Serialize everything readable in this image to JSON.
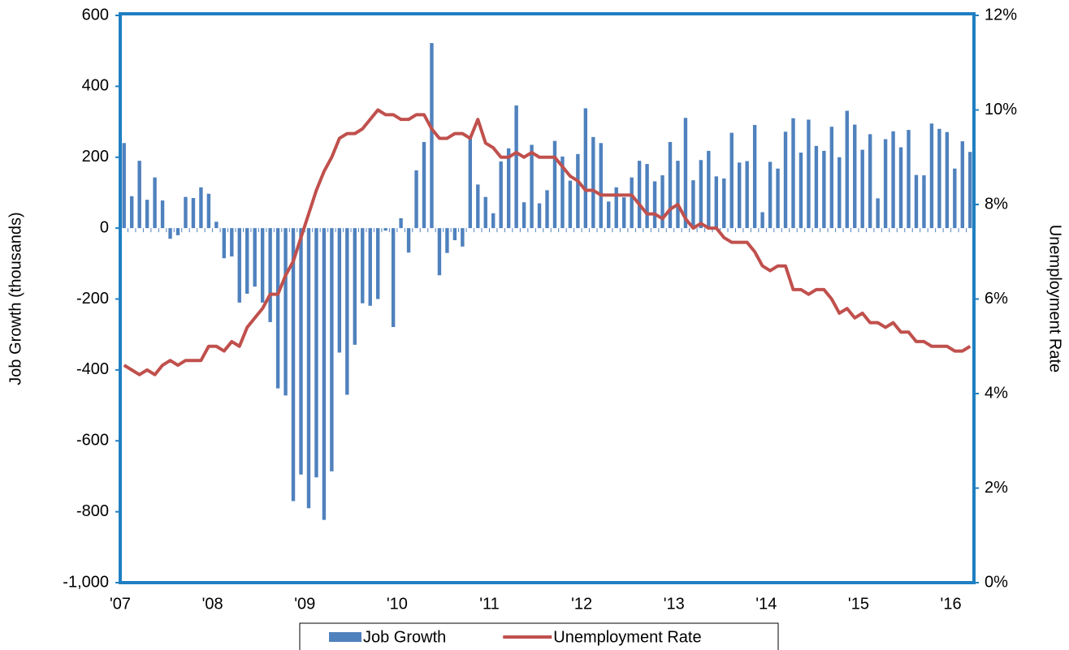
{
  "chart_data": {
    "type": "bar",
    "categories": [
      "'07",
      null,
      null,
      null,
      null,
      null,
      null,
      null,
      null,
      null,
      null,
      null,
      "'08",
      null,
      null,
      null,
      null,
      null,
      null,
      null,
      null,
      null,
      null,
      null,
      "'09",
      null,
      null,
      null,
      null,
      null,
      null,
      null,
      null,
      null,
      null,
      null,
      "'10",
      null,
      null,
      null,
      null,
      null,
      null,
      null,
      null,
      null,
      null,
      null,
      "'11",
      null,
      null,
      null,
      null,
      null,
      null,
      null,
      null,
      null,
      null,
      null,
      "'12",
      null,
      null,
      null,
      null,
      null,
      null,
      null,
      null,
      null,
      null,
      null,
      "'13",
      null,
      null,
      null,
      null,
      null,
      null,
      null,
      null,
      null,
      null,
      null,
      "'14",
      null,
      null,
      null,
      null,
      null,
      null,
      null,
      null,
      null,
      null,
      null,
      "'15",
      null,
      null,
      null,
      null,
      null,
      null,
      null,
      null,
      null,
      null,
      null,
      "'16",
      null,
      null
    ],
    "series": [
      {
        "name": "Job Growth",
        "type": "bar",
        "color": "#4f81bd",
        "values": [
          240,
          90,
          190,
          80,
          143,
          78,
          -30,
          -20,
          88,
          85,
          115,
          97,
          18,
          -85,
          -80,
          -210,
          -185,
          -165,
          -210,
          -265,
          -452,
          -472,
          -770,
          -695,
          -790,
          -703,
          -823,
          -686,
          -351,
          -470,
          -329,
          -212,
          -219,
          -200,
          -7,
          -279,
          28,
          -69,
          163,
          243,
          522,
          -133,
          -70,
          -34,
          -52,
          257,
          123,
          88,
          42,
          188,
          225,
          346,
          73,
          235,
          70,
          107,
          246,
          202,
          134,
          209,
          338,
          257,
          240,
          75,
          115,
          87,
          143,
          190,
          181,
          132,
          149,
          243,
          190,
          311,
          135,
          192,
          218,
          146,
          140,
          269,
          185,
          189,
          291,
          45,
          187,
          168,
          272,
          310,
          213,
          306,
          232,
          218,
          286,
          200,
          331,
          292,
          221,
          265,
          84,
          251,
          273,
          228,
          277,
          150,
          149,
          295,
          280,
          271,
          168,
          245,
          215
        ]
      },
      {
        "name": "Unemployment Rate",
        "type": "line",
        "axis": "y2",
        "color": "#c0504d",
        "values": [
          4.6,
          4.5,
          4.4,
          4.5,
          4.4,
          4.6,
          4.7,
          4.6,
          4.7,
          4.7,
          4.7,
          5.0,
          5.0,
          4.9,
          5.1,
          5.0,
          5.4,
          5.6,
          5.8,
          6.1,
          6.1,
          6.5,
          6.8,
          7.3,
          7.8,
          8.3,
          8.7,
          9.0,
          9.4,
          9.5,
          9.5,
          9.6,
          9.8,
          10.0,
          9.9,
          9.9,
          9.8,
          9.8,
          9.9,
          9.9,
          9.6,
          9.4,
          9.4,
          9.5,
          9.5,
          9.4,
          9.8,
          9.3,
          9.2,
          9.0,
          9.0,
          9.1,
          9.0,
          9.1,
          9.0,
          9.0,
          9.0,
          8.8,
          8.6,
          8.5,
          8.3,
          8.3,
          8.2,
          8.2,
          8.2,
          8.2,
          8.2,
          8.0,
          7.8,
          7.8,
          7.7,
          7.9,
          8.0,
          7.7,
          7.5,
          7.6,
          7.5,
          7.5,
          7.3,
          7.2,
          7.2,
          7.2,
          7.0,
          6.7,
          6.6,
          6.7,
          6.7,
          6.2,
          6.2,
          6.1,
          6.2,
          6.2,
          6.0,
          5.7,
          5.8,
          5.6,
          5.7,
          5.5,
          5.5,
          5.4,
          5.5,
          5.3,
          5.3,
          5.1,
          5.1,
          5.0,
          5.0,
          5.0,
          4.9,
          4.9,
          5.0
        ]
      }
    ],
    "ylabel": "Job Growth (thousands)",
    "y2label": "Unemployment Rate",
    "ylim": [
      -1000,
      600
    ],
    "yticks": [
      {
        "value": -1000,
        "label": "-1,000"
      },
      -800,
      -600,
      -400,
      -200,
      0,
      200,
      400,
      600
    ],
    "y2lim": [
      0,
      12
    ],
    "y2ticks": [
      {
        "value": 0,
        "label": "0%"
      },
      {
        "value": 2,
        "label": "2%"
      },
      {
        "value": 4,
        "label": "4%"
      },
      {
        "value": 6,
        "label": "6%"
      },
      {
        "value": 8,
        "label": "8%"
      },
      {
        "value": 10,
        "label": "10%"
      },
      {
        "value": 12,
        "label": "12%"
      }
    ],
    "legend": "bottom",
    "frame_color": "#1f7fc1"
  }
}
